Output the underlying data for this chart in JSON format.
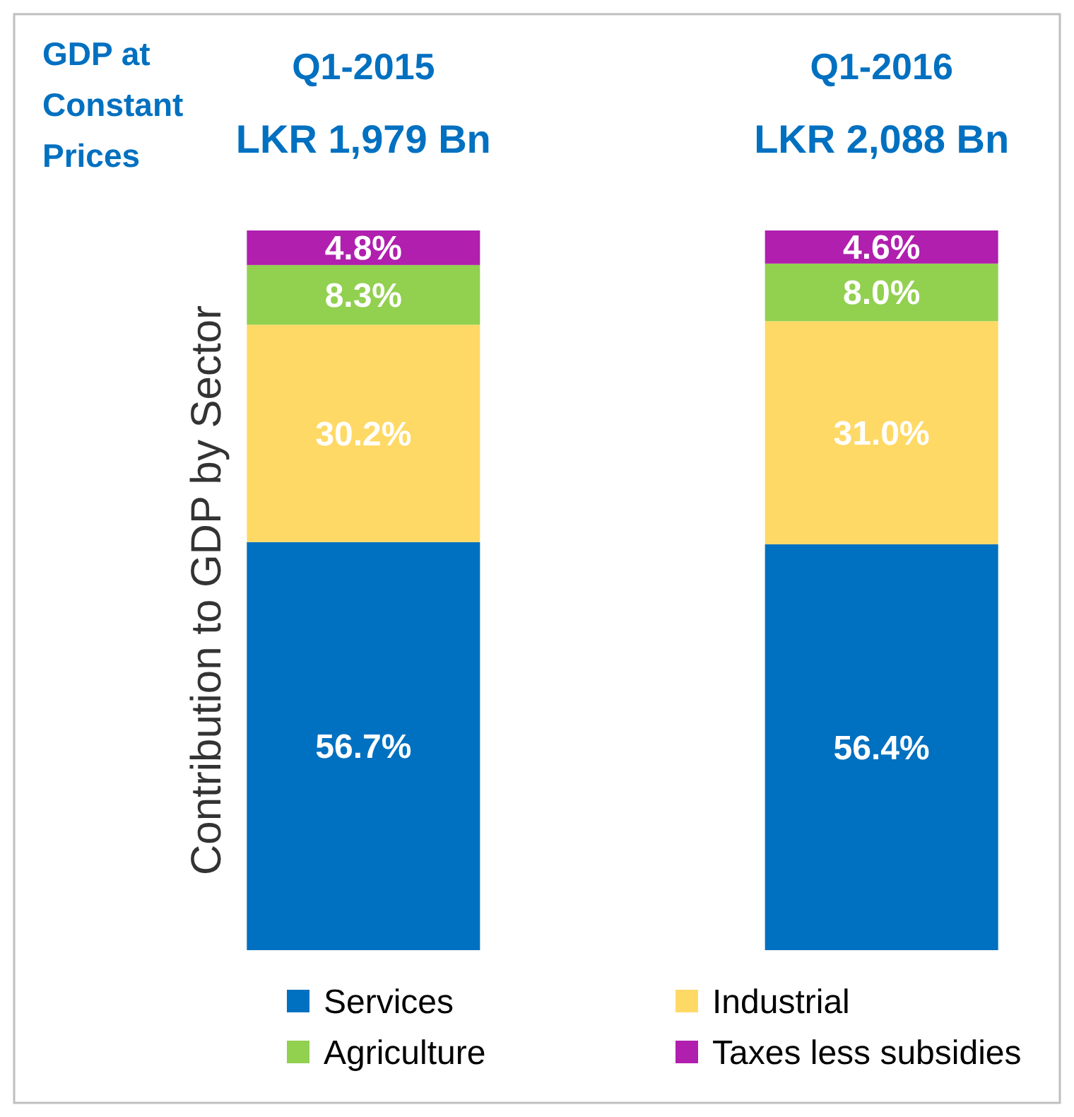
{
  "chart_data": {
    "type": "bar",
    "stacked": true,
    "title": "GDP at Constant Prices",
    "ylabel": "Contribution to GDP by Sector",
    "categories": [
      "Q1-2015",
      "Q1-2016"
    ],
    "annotations": [
      "LKR 1,979 Bn",
      "LKR 2,088 Bn"
    ],
    "series": [
      {
        "name": "Services",
        "color": "#0070c0",
        "values": [
          56.7,
          56.4
        ],
        "value_labels": [
          "56.7%",
          "56.4%"
        ]
      },
      {
        "name": "Industrial",
        "color": "#ffd966",
        "values": [
          30.2,
          31.0
        ],
        "value_labels": [
          "30.2%",
          "31.0%"
        ]
      },
      {
        "name": "Agriculture",
        "color": "#92d050",
        "values": [
          8.3,
          8.0
        ],
        "value_labels": [
          "8.3%",
          "8.0%"
        ]
      },
      {
        "name": "Taxes less subsidies",
        "color": "#b01fae",
        "values": [
          4.8,
          4.6
        ],
        "value_labels": [
          "4.8%",
          "4.6%"
        ]
      }
    ],
    "legend": "bottom"
  }
}
